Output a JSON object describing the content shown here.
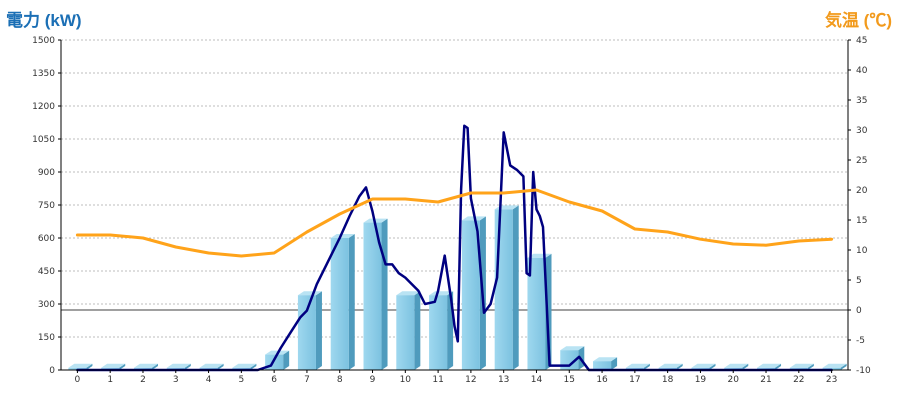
{
  "chart_data": {
    "type": "bar",
    "left_axis": {
      "title": "電力 (kW)",
      "ylim": [
        0,
        1500
      ],
      "ticks": [
        "0",
        "150",
        "300",
        "450",
        "600",
        "750",
        "900",
        "1050",
        "1200",
        "1350",
        "1500"
      ]
    },
    "right_axis": {
      "title": "気温 (℃)",
      "ylim": [
        -10,
        45
      ],
      "ticks": [
        "-10",
        "-5",
        "0",
        "5",
        "10",
        "15",
        "20",
        "25",
        "30",
        "35",
        "40",
        "45"
      ]
    },
    "categories": [
      "0",
      "1",
      "2",
      "3",
      "4",
      "5",
      "6",
      "7",
      "8",
      "9",
      "10",
      "11",
      "12",
      "13",
      "14",
      "15",
      "16",
      "17",
      "18",
      "19",
      "20",
      "21",
      "22",
      "23"
    ],
    "series": [
      {
        "kind": "bar",
        "axis": "left",
        "color": "#87cbe6",
        "values": [
          10,
          10,
          10,
          10,
          10,
          10,
          70,
          340,
          600,
          670,
          340,
          340,
          680,
          730,
          510,
          90,
          40,
          10,
          10,
          10,
          10,
          10,
          10,
          10
        ]
      },
      {
        "kind": "line",
        "axis": "left",
        "color": "#000080",
        "x": [
          0,
          1,
          2,
          3,
          4,
          5,
          5.5,
          5.9,
          6.2,
          6.5,
          6.8,
          7,
          7.3,
          7.6,
          8,
          8.3,
          8.6,
          8.8,
          9,
          9.2,
          9.4,
          9.6,
          9.8,
          10,
          10.2,
          10.4,
          10.6,
          10.9,
          11,
          11.2,
          11.4,
          11.5,
          11.6,
          11.7,
          11.8,
          11.9,
          12,
          12.2,
          12.4,
          12.6,
          12.8,
          13,
          13.2,
          13.4,
          13.6,
          13.7,
          13.8,
          13.9,
          14,
          14.1,
          14.2,
          14.4,
          14.6,
          14.8,
          15,
          15.3,
          15.6,
          15.9,
          16.2,
          16.5,
          17,
          18,
          19,
          20,
          21,
          22,
          23
        ],
        "values": [
          0,
          0,
          0,
          0,
          0,
          0,
          0,
          20,
          100,
          170,
          240,
          270,
          390,
          480,
          600,
          700,
          790,
          830,
          720,
          580,
          480,
          480,
          440,
          420,
          390,
          360,
          300,
          310,
          360,
          520,
          320,
          200,
          130,
          820,
          1110,
          1100,
          780,
          630,
          260,
          300,
          420,
          1080,
          930,
          910,
          880,
          440,
          430,
          900,
          730,
          700,
          650,
          20,
          20,
          20,
          20,
          60,
          0,
          0,
          0,
          0,
          0,
          0,
          0,
          0,
          0,
          0,
          0
        ]
      },
      {
        "kind": "line",
        "axis": "right",
        "color": "#ffa31a",
        "x": [
          0,
          1,
          2,
          3,
          4,
          5,
          6,
          7,
          8,
          9,
          10,
          11,
          12,
          13,
          14,
          15,
          16,
          17,
          18,
          19,
          20,
          21,
          22,
          23
        ],
        "values": [
          12.5,
          12.5,
          12,
          10.5,
          9.5,
          9,
          9.5,
          13,
          16,
          18.5,
          18.5,
          18,
          19.5,
          19.5,
          20,
          18,
          16.5,
          13.5,
          13,
          11.8,
          11,
          10.8,
          11.5,
          11.8
        ]
      }
    ],
    "grid": true,
    "legend": "none"
  }
}
